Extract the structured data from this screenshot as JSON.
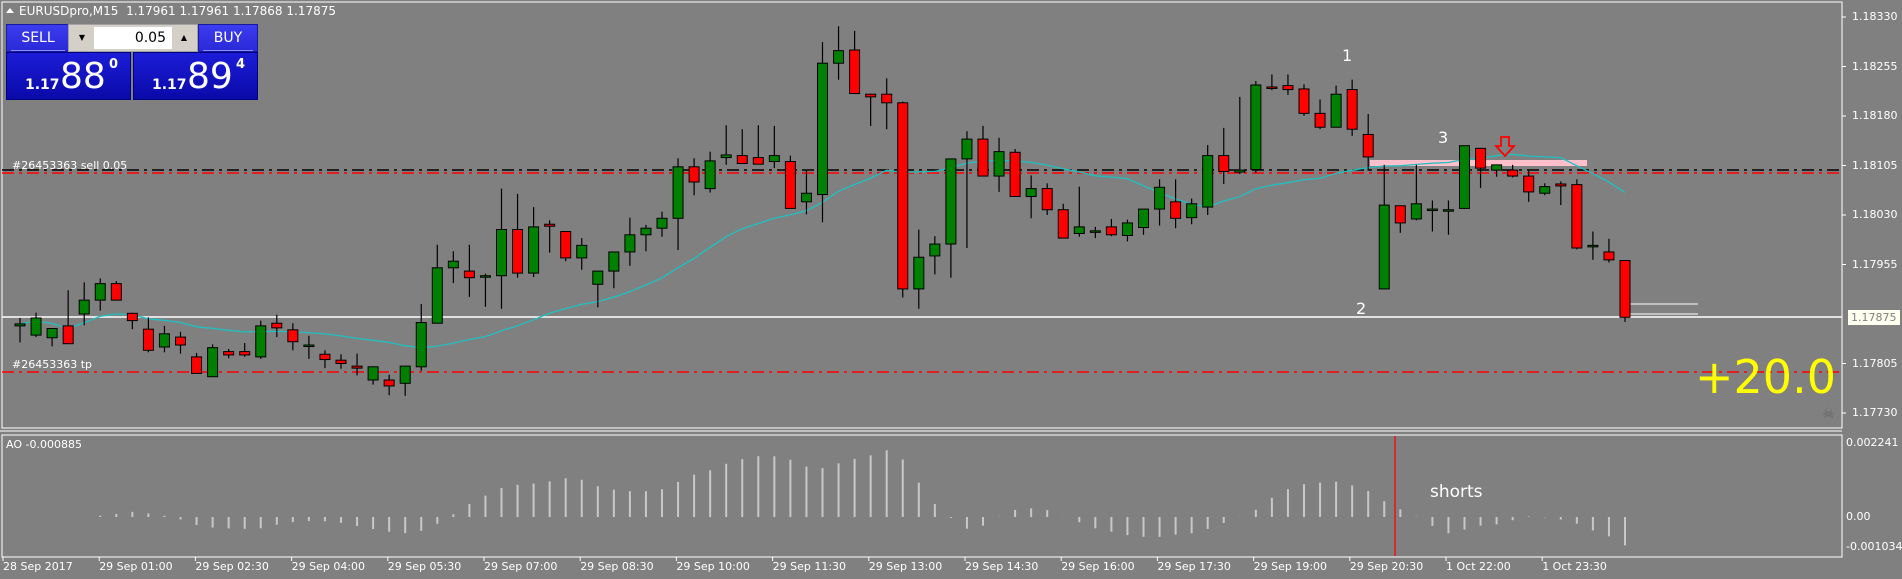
{
  "window": {
    "symbol": "EURUSDpro,M15",
    "ohlc": "1.17961 1.17961 1.17868 1.17875"
  },
  "trade_panel": {
    "sell_label": "SELL",
    "buy_label": "BUY",
    "lot_value": "0.05",
    "sell_price": {
      "prefix": "1.17",
      "big": "88",
      "sup": "0"
    },
    "buy_price": {
      "prefix": "1.17",
      "big": "89",
      "sup": "4"
    }
  },
  "colors": {
    "background": "#808080",
    "bull": "#008000",
    "bear": "#ff0000",
    "ma_line": "#20c0c0",
    "profit_text": "#ffff00",
    "order_line": "#ff0000",
    "resistance_zone": "#ffc0cb"
  },
  "price_axis": {
    "ticks": [
      "1.18330",
      "1.18255",
      "1.18180",
      "1.18105",
      "1.18030",
      "1.17955",
      "1.17875",
      "1.17805",
      "1.17730"
    ],
    "current_price": "1.17875"
  },
  "indicator": {
    "label": "AO -0.000885",
    "ticks": [
      "0.002241",
      "0.00",
      "-0.001034"
    ],
    "annotation": "shorts"
  },
  "time_axis": {
    "labels": [
      "28 Sep 2017",
      "29 Sep 01:00",
      "29 Sep 02:30",
      "29 Sep 04:00",
      "29 Sep 05:30",
      "29 Sep 07:00",
      "29 Sep 08:30",
      "29 Sep 10:00",
      "29 Sep 11:30",
      "29 Sep 13:00",
      "29 Sep 14:30",
      "29 Sep 16:00",
      "29 Sep 17:30",
      "29 Sep 19:00",
      "29 Sep 20:30",
      "1 Oct 22:00",
      "1 Oct 23:30"
    ]
  },
  "orders": {
    "entry_label": "#26453363 sell 0.05",
    "tp_label": "#26453363 tp"
  },
  "annotations": {
    "point1": "1",
    "point2": "2",
    "point3": "3",
    "profit": "+20.0"
  },
  "chart_data": {
    "type": "candlestick",
    "title": "EURUSDpro,M15",
    "ylim": [
      1.17705,
      1.18355
    ],
    "candles": [
      [
        1.17862,
        1.17874,
        1.17837,
        1.17865
      ],
      [
        1.17848,
        1.17882,
        1.17845,
        1.17874
      ],
      [
        1.17844,
        1.17858,
        1.17831,
        1.17858
      ],
      [
        1.17862,
        1.17916,
        1.17862,
        1.17835
      ],
      [
        1.1788,
        1.17928,
        1.17863,
        1.17901
      ],
      [
        1.17901,
        1.17934,
        1.17885,
        1.17926
      ],
      [
        1.17926,
        1.1793,
        1.17902,
        1.17901
      ],
      [
        1.17881,
        1.17882,
        1.17857,
        1.1787
      ],
      [
        1.17857,
        1.17875,
        1.17822,
        1.17825
      ],
      [
        1.1783,
        1.17862,
        1.17822,
        1.1785
      ],
      [
        1.17845,
        1.17853,
        1.1782,
        1.17833
      ],
      [
        1.17815,
        1.17821,
        1.1779,
        1.1779
      ],
      [
        1.17785,
        1.17834,
        1.17785,
        1.17829
      ],
      [
        1.17823,
        1.17827,
        1.17813,
        1.17818
      ],
      [
        1.17823,
        1.17836,
        1.17815,
        1.17818
      ],
      [
        1.17815,
        1.1787,
        1.17812,
        1.17862
      ],
      [
        1.17866,
        1.17879,
        1.17845,
        1.17859
      ],
      [
        1.17856,
        1.17866,
        1.17825,
        1.17838
      ],
      [
        1.17833,
        1.17847,
        1.17812,
        1.17833
      ],
      [
        1.17819,
        1.17825,
        1.17798,
        1.17811
      ],
      [
        1.1781,
        1.17819,
        1.17797,
        1.17805
      ],
      [
        1.17801,
        1.1782,
        1.17787,
        1.17798
      ],
      [
        1.1778,
        1.178,
        1.17773,
        1.178
      ],
      [
        1.1778,
        1.17788,
        1.17757,
        1.17771
      ],
      [
        1.17775,
        1.17801,
        1.17756,
        1.17801
      ],
      [
        1.178,
        1.17895,
        1.17794,
        1.17867
      ],
      [
        1.17866,
        1.17985,
        1.17866,
        1.1795
      ],
      [
        1.1795,
        1.17975,
        1.17927,
        1.1796
      ],
      [
        1.17945,
        1.17985,
        1.17906,
        1.17935
      ],
      [
        1.17938,
        1.17941,
        1.17891,
        1.17938
      ],
      [
        1.17938,
        1.1807,
        1.17888,
        1.18008
      ],
      [
        1.18008,
        1.18062,
        1.17935,
        1.17942
      ],
      [
        1.17942,
        1.18042,
        1.17936,
        1.18012
      ],
      [
        1.18016,
        1.18022,
        1.17973,
        1.18013
      ],
      [
        1.18005,
        1.18005,
        1.1796,
        1.17965
      ],
      [
        1.17965,
        1.17995,
        1.17947,
        1.17984
      ],
      [
        1.17925,
        1.17932,
        1.1789,
        1.17945
      ],
      [
        1.17945,
        1.17968,
        1.17919,
        1.17974
      ],
      [
        1.17974,
        1.18026,
        1.17953,
        1.18
      ],
      [
        1.18,
        1.18015,
        1.17975,
        1.1801
      ],
      [
        1.1801,
        1.18035,
        1.17997,
        1.18025
      ],
      [
        1.18025,
        1.18116,
        1.17977,
        1.18103
      ],
      [
        1.18103,
        1.18116,
        1.1806,
        1.1808
      ],
      [
        1.1807,
        1.18126,
        1.18064,
        1.18112
      ],
      [
        1.18117,
        1.18166,
        1.18106,
        1.18121
      ],
      [
        1.1812,
        1.1816,
        1.1811,
        1.18108
      ],
      [
        1.18117,
        1.18166,
        1.18114,
        1.18107
      ],
      [
        1.18111,
        1.18165,
        1.18101,
        1.1812
      ],
      [
        1.18111,
        1.1812,
        1.1804,
        1.1804
      ],
      [
        1.1805,
        1.18098,
        1.18031,
        1.18063
      ],
      [
        1.18061,
        1.18292,
        1.18019,
        1.1826
      ],
      [
        1.1826,
        1.18316,
        1.18235,
        1.18279
      ],
      [
        1.1828,
        1.18309,
        1.18219,
        1.18214
      ],
      [
        1.18213,
        1.18214,
        1.18165,
        1.18209
      ],
      [
        1.18213,
        1.18237,
        1.1816,
        1.182
      ],
      [
        1.182,
        1.18202,
        1.17905,
        1.17918
      ],
      [
        1.17918,
        1.18008,
        1.17888,
        1.17966
      ],
      [
        1.17968,
        1.17998,
        1.1794,
        1.17986
      ],
      [
        1.17986,
        1.18093,
        1.17935,
        1.18115
      ],
      [
        1.18115,
        1.18157,
        1.1798,
        1.18145
      ],
      [
        1.18145,
        1.18165,
        1.18091,
        1.18089
      ],
      [
        1.18089,
        1.18147,
        1.18065,
        1.18126
      ],
      [
        1.18125,
        1.1813,
        1.1806,
        1.18058
      ],
      [
        1.18058,
        1.1809,
        1.18025,
        1.1807
      ],
      [
        1.1807,
        1.18078,
        1.1803,
        1.18038
      ],
      [
        1.18038,
        1.18047,
        1.18006,
        1.17995
      ],
      [
        1.18002,
        1.18073,
        1.17997,
        1.18012
      ],
      [
        1.18006,
        1.18012,
        1.17995,
        1.18006
      ],
      [
        1.18012,
        1.18024,
        1.17998,
        1.18
      ],
      [
        1.17999,
        1.18023,
        1.1799,
        1.18018
      ],
      [
        1.18011,
        1.18036,
        1.18,
        1.18039
      ],
      [
        1.18039,
        1.18084,
        1.18014,
        1.18072
      ],
      [
        1.1805,
        1.18084,
        1.1801,
        1.18025
      ],
      [
        1.18026,
        1.18055,
        1.18016,
        1.18047
      ],
      [
        1.18042,
        1.18136,
        1.1803,
        1.1812
      ],
      [
        1.1812,
        1.18162,
        1.18077,
        1.18096
      ],
      [
        1.18095,
        1.18209,
        1.18092,
        1.18098
      ],
      [
        1.18099,
        1.18233,
        1.18094,
        1.18227
      ],
      [
        1.18224,
        1.18243,
        1.18219,
        1.18222
      ],
      [
        1.18226,
        1.18243,
        1.18212,
        1.1822
      ],
      [
        1.18221,
        1.18228,
        1.1818,
        1.18184
      ],
      [
        1.18184,
        1.18205,
        1.1816,
        1.18163
      ],
      [
        1.18163,
        1.18226,
        1.18163,
        1.18213
      ],
      [
        1.1822,
        1.18235,
        1.1815,
        1.1816
      ],
      [
        1.18152,
        1.18183,
        1.18097,
        1.18118
      ],
      [
        1.17918,
        1.18106,
        1.17918,
        1.18045
      ],
      [
        1.18044,
        1.18044,
        1.18003,
        1.18018
      ],
      [
        1.18024,
        1.18106,
        1.18022,
        1.18047
      ],
      [
        1.18039,
        1.18052,
        1.18005,
        1.18039
      ],
      [
        1.18038,
        1.18052,
        1.18,
        1.18038
      ],
      [
        1.1804,
        1.18135,
        1.18039,
        1.18135
      ],
      [
        1.18131,
        1.18131,
        1.18071,
        1.18101
      ],
      [
        1.18098,
        1.18106,
        1.18088,
        1.18106
      ],
      [
        1.18098,
        1.18106,
        1.18087,
        1.18089
      ],
      [
        1.18089,
        1.18097,
        1.1805,
        1.18065
      ],
      [
        1.18063,
        1.18078,
        1.1806,
        1.18073
      ],
      [
        1.18077,
        1.18081,
        1.18045,
        1.18074
      ],
      [
        1.18076,
        1.18084,
        1.17978,
        1.1798
      ],
      [
        1.17982,
        1.18005,
        1.17962,
        1.17984
      ],
      [
        1.17974,
        1.17994,
        1.17958,
        1.17962
      ],
      [
        1.17961,
        1.17961,
        1.17868,
        1.17875
      ]
    ],
    "ma_note": "cyan moving average overlay",
    "horizontal_lines": {
      "entry_price": 1.181,
      "tp_price": 1.1781,
      "current_price": 1.17875
    }
  }
}
